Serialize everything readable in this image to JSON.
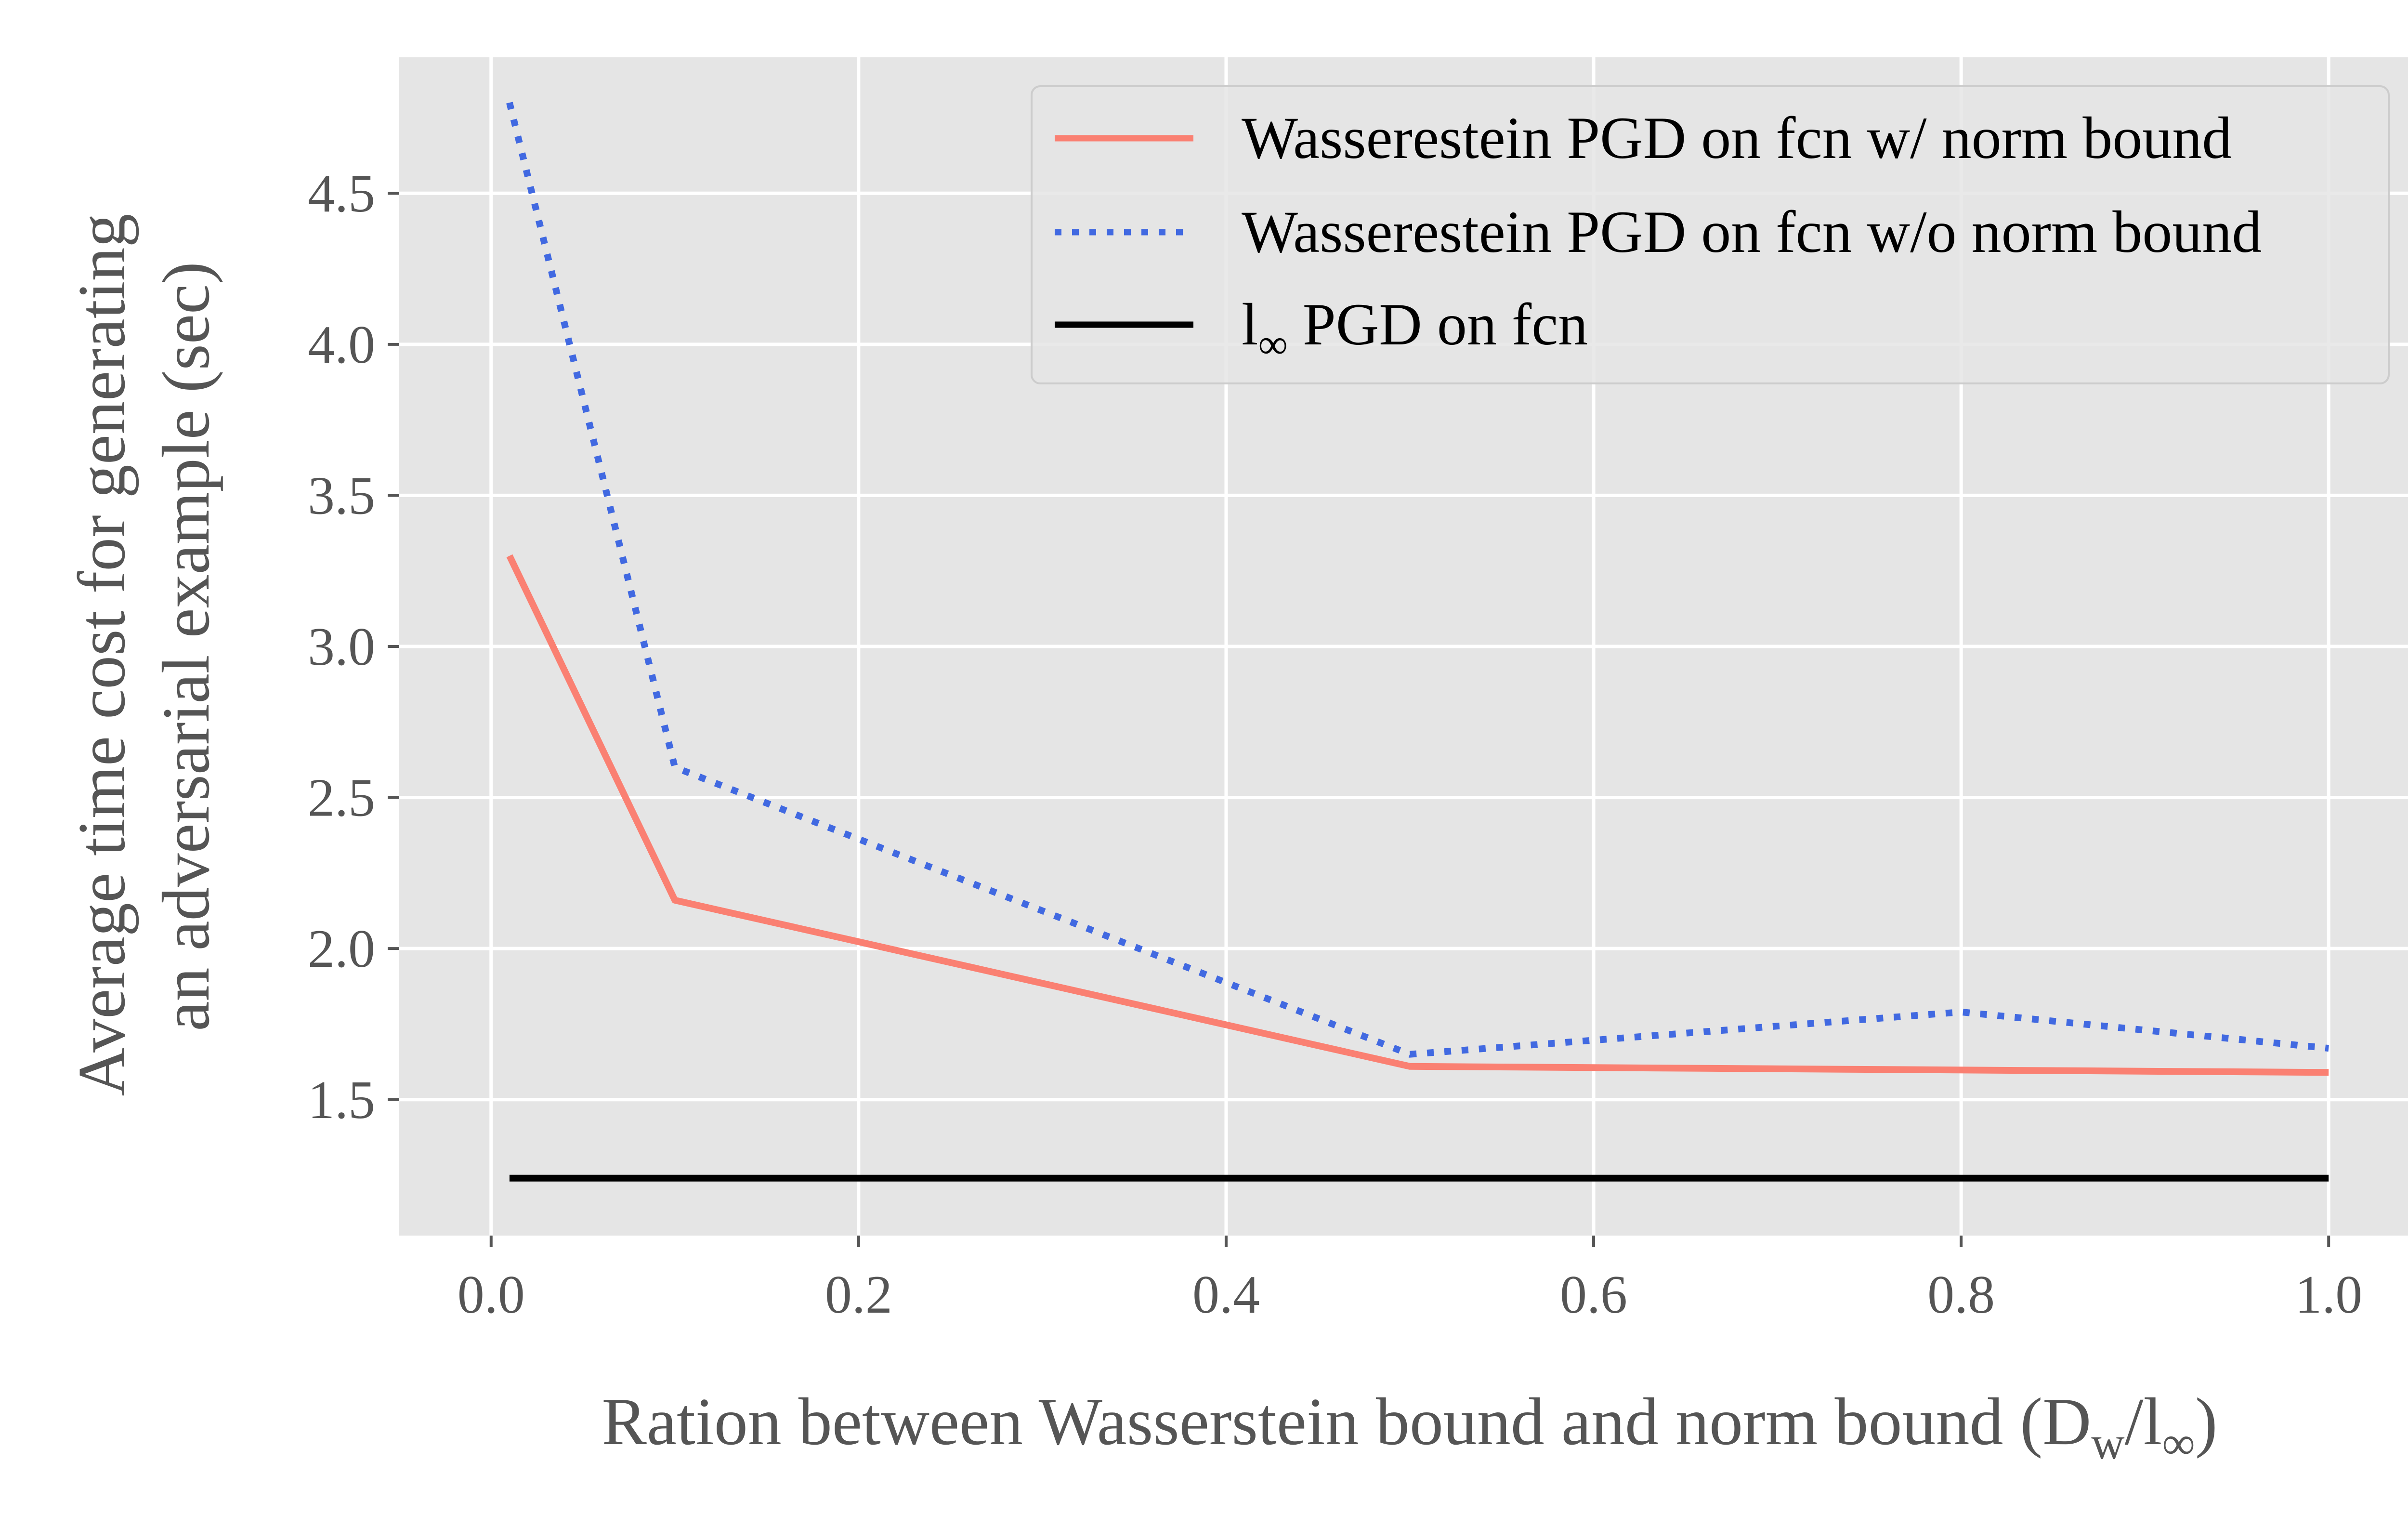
{
  "chart_data": {
    "type": "line",
    "title": "",
    "xlabel": {
      "main": "Ration between Wasserstein bound and norm bound (D",
      "sub1": "w",
      "slash": "/l",
      "sub2": "∞",
      "close": ")"
    },
    "ylabel_lines": [
      "Average time cost for generating",
      "an adversarial example (sec)"
    ],
    "xlim": [
      -0.05,
      1.05
    ],
    "ylim": [
      1.05,
      4.95
    ],
    "xticks": [
      0.0,
      0.2,
      0.4,
      0.6,
      0.8,
      1.0
    ],
    "xtick_labels": [
      "0.0",
      "0.2",
      "0.4",
      "0.6",
      "0.8",
      "1.0"
    ],
    "yticks": [
      1.5,
      2.0,
      2.5,
      3.0,
      3.5,
      4.0,
      4.5
    ],
    "ytick_labels": [
      "1.5",
      "2.0",
      "2.5",
      "3.0",
      "3.5",
      "4.0",
      "4.5"
    ],
    "grid": true,
    "legend_position": "top-right",
    "series": [
      {
        "name": "Wasserestein PGD on fcn w/ norm bound",
        "color": "#fa8072",
        "style": "solid",
        "x": [
          0.01,
          0.1,
          0.5,
          1.0
        ],
        "y": [
          3.3,
          2.16,
          1.61,
          1.59
        ]
      },
      {
        "name": "Wasserestein PGD on fcn w/o norm bound",
        "color": "#4169e1",
        "style": "dotted",
        "x": [
          0.01,
          0.1,
          0.5,
          0.8,
          1.0
        ],
        "y": [
          4.8,
          2.6,
          1.65,
          1.79,
          1.67
        ]
      },
      {
        "name": "l∞ PGD on fcn",
        "name_main": "l",
        "name_sub": "∞",
        "name_rest": " PGD on fcn",
        "color": "#000000",
        "style": "solid",
        "x": [
          0.01,
          1.0
        ],
        "y": [
          1.24,
          1.24
        ]
      }
    ]
  }
}
